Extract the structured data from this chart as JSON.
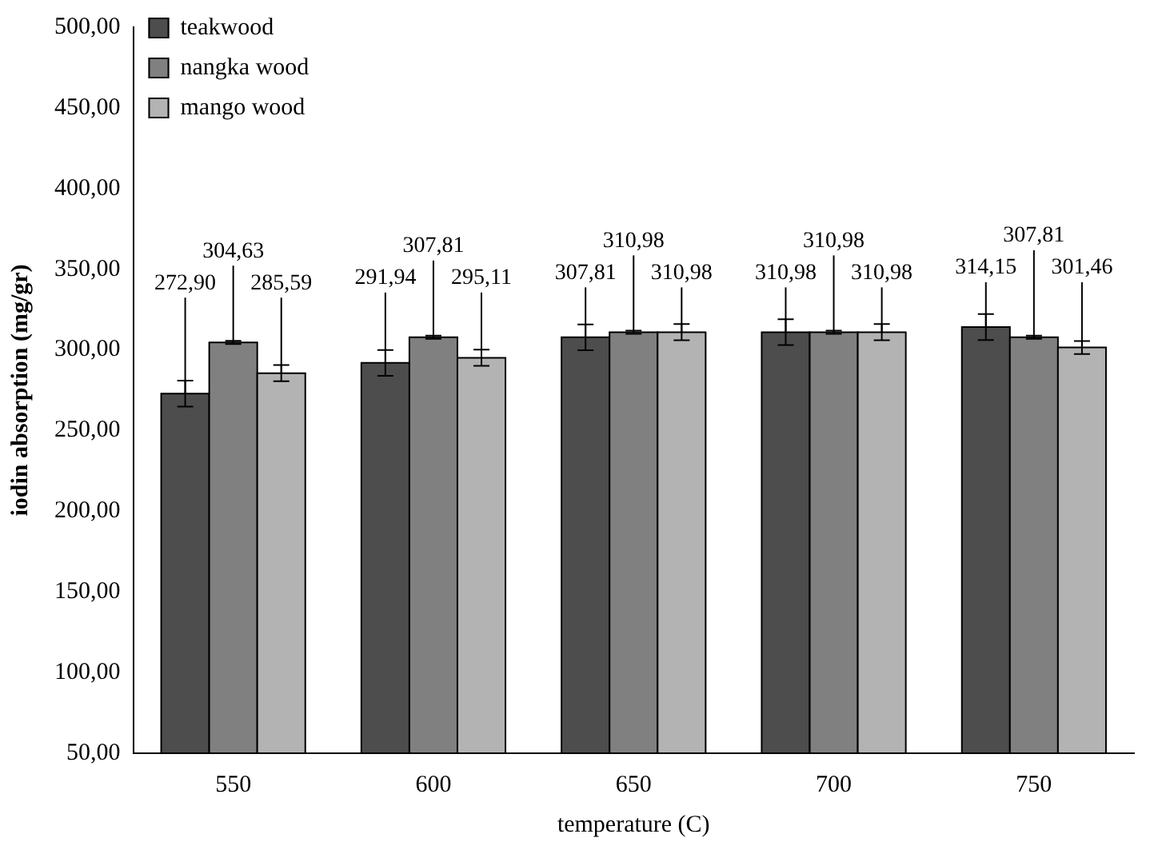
{
  "chart_data": {
    "type": "bar",
    "xlabel": "temperature (C)",
    "ylabel": "iodin absorption (mg/gr)",
    "categories": [
      "550",
      "600",
      "650",
      "700",
      "750"
    ],
    "series": [
      {
        "name": "teakwood",
        "color": "#4d4d4d",
        "values": [
          272.9,
          291.94,
          307.81,
          310.98,
          314.15
        ],
        "errors": [
          8,
          8,
          8,
          8,
          8
        ],
        "value_labels": [
          "272,90",
          "291,94",
          "307,81",
          "310,98",
          "314,15"
        ]
      },
      {
        "name": "nangka wood",
        "color": "#808080",
        "values": [
          304.63,
          307.81,
          310.98,
          310.98,
          307.81
        ],
        "errors": [
          1,
          1,
          1,
          1,
          1
        ],
        "value_labels": [
          "304,63",
          "307,81",
          "310,98",
          "310,98",
          "307,81"
        ]
      },
      {
        "name": "mango wood",
        "color": "#b3b3b3",
        "values": [
          285.59,
          295.11,
          310.98,
          310.98,
          301.46
        ],
        "errors": [
          5,
          5,
          5,
          5,
          4
        ],
        "value_labels": [
          "285,59",
          "295,11",
          "310,98",
          "310,98",
          "301,46"
        ]
      }
    ],
    "ylim": [
      50,
      500
    ],
    "yticks": [
      {
        "value": 50,
        "label": "50,00"
      },
      {
        "value": 100,
        "label": "100,00"
      },
      {
        "value": 150,
        "label": "150,00"
      },
      {
        "value": 200,
        "label": "200,00"
      },
      {
        "value": 250,
        "label": "250,00"
      },
      {
        "value": 300,
        "label": "300,00"
      },
      {
        "value": 350,
        "label": "350,00"
      },
      {
        "value": 400,
        "label": "400,00"
      },
      {
        "value": 450,
        "label": "450,00"
      },
      {
        "value": 500,
        "label": "500,00"
      }
    ],
    "grid": false,
    "legend": "top left"
  }
}
